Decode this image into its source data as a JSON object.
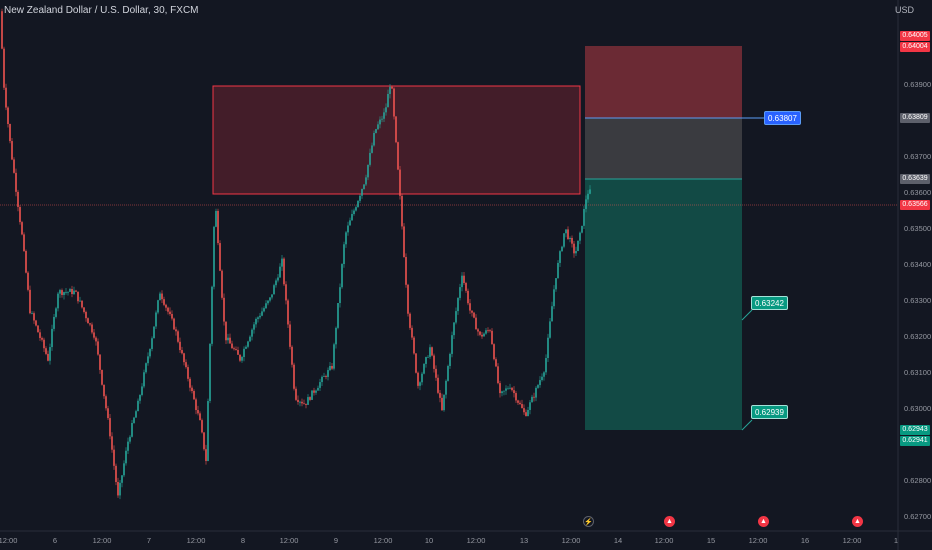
{
  "header": {
    "symbol_title": "New Zealand Dollar / U.S. Dollar, 30, FXCM",
    "currency": "USD"
  },
  "colors": {
    "background": "#131722",
    "bull": "#26a69a",
    "bear": "#ef5350",
    "zone_fill": "rgba(242,54,69,0.22)",
    "stop_fill": "#6b2a34",
    "mid_fill": "#3a3b40",
    "target_fill": "#124a45",
    "last_price_line": "#ef5350"
  },
  "price_axis": {
    "ticks": [
      "0.63900",
      "0.63700",
      "0.63600",
      "0.63500",
      "0.63400",
      "0.63300",
      "0.63200",
      "0.63100",
      "0.63000",
      "0.62800",
      "0.62700"
    ]
  },
  "time_axis": {
    "ticks": [
      "12:00",
      "6",
      "12:00",
      "7",
      "12:00",
      "8",
      "12:00",
      "9",
      "12:00",
      "10",
      "12:00",
      "13",
      "12:00",
      "14",
      "12:00",
      "15",
      "12:00",
      "16",
      "12:00",
      "1"
    ]
  },
  "price_tags": [
    {
      "text": "0.64005",
      "color": "#f23645"
    },
    {
      "text": "0.64004",
      "color": "#f23645"
    },
    {
      "text": "0.63809",
      "color": "#5d606b"
    },
    {
      "text": "0.63639",
      "color": "#5d606b"
    },
    {
      "text": "0.63566",
      "color": "#f23645"
    },
    {
      "text": "0.62943",
      "color": "#089981"
    },
    {
      "text": "0.62941",
      "color": "#089981"
    }
  ],
  "callouts": {
    "stop_callout": "0.63807",
    "target1_callout": "0.63242",
    "target2_callout": "0.62939"
  },
  "events": {
    "lightning_icon": "⚡",
    "flag_icons": [
      "▲",
      "▲",
      "▲"
    ]
  },
  "chart_data": {
    "type": "candlestick",
    "title": "New Zealand Dollar / U.S. Dollar, 30, FXCM",
    "ylabel": "USD",
    "ylim": [
      0.6266,
      0.6408
    ],
    "last_price": 0.63566,
    "supply_zone": {
      "top": 0.639,
      "bottom": 0.636
    },
    "position": {
      "stop": 0.64,
      "stop_mid": 0.63809,
      "entry": 0.63639,
      "target_1": 0.63242,
      "target_2": 0.62939
    },
    "anchors": [
      [
        0,
        0.6405
      ],
      [
        4,
        0.6385
      ],
      [
        10,
        0.637
      ],
      [
        22,
        0.6345
      ],
      [
        30,
        0.6325
      ],
      [
        48,
        0.6312
      ],
      [
        58,
        0.633
      ],
      [
        75,
        0.633
      ],
      [
        95,
        0.6318
      ],
      [
        110,
        0.6292
      ],
      [
        118,
        0.6275
      ],
      [
        128,
        0.629
      ],
      [
        138,
        0.63
      ],
      [
        152,
        0.6318
      ],
      [
        160,
        0.633
      ],
      [
        175,
        0.632
      ],
      [
        190,
        0.6305
      ],
      [
        200,
        0.6295
      ],
      [
        206,
        0.6285
      ],
      [
        215,
        0.6355
      ],
      [
        225,
        0.6318
      ],
      [
        240,
        0.6312
      ],
      [
        255,
        0.6322
      ],
      [
        270,
        0.6328
      ],
      [
        282,
        0.6338
      ],
      [
        295,
        0.6302
      ],
      [
        305,
        0.63
      ],
      [
        318,
        0.6305
      ],
      [
        332,
        0.631
      ],
      [
        345,
        0.6345
      ],
      [
        365,
        0.636
      ],
      [
        375,
        0.6373
      ],
      [
        385,
        0.6378
      ],
      [
        391,
        0.6387
      ],
      [
        400,
        0.6355
      ],
      [
        408,
        0.6325
      ],
      [
        418,
        0.6305
      ],
      [
        430,
        0.6315
      ],
      [
        442,
        0.6298
      ],
      [
        452,
        0.6318
      ],
      [
        462,
        0.6335
      ],
      [
        470,
        0.6325
      ],
      [
        480,
        0.6318
      ],
      [
        490,
        0.632
      ],
      [
        500,
        0.6302
      ],
      [
        510,
        0.6305
      ],
      [
        525,
        0.6297
      ],
      [
        535,
        0.6303
      ],
      [
        545,
        0.631
      ],
      [
        555,
        0.6333
      ],
      [
        565,
        0.6347
      ],
      [
        575,
        0.634
      ],
      [
        580,
        0.6345
      ],
      [
        587,
        0.63566
      ]
    ]
  }
}
